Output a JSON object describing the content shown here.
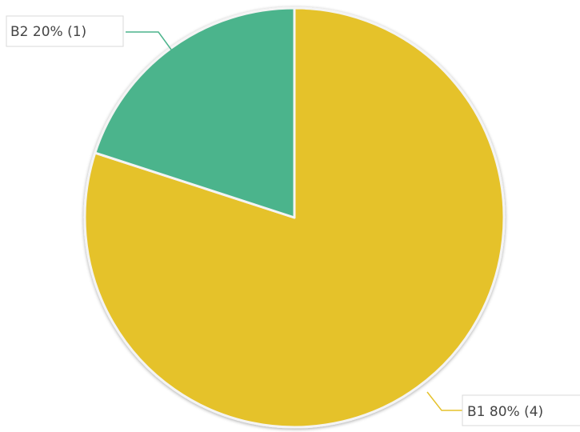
{
  "chart_data": {
    "type": "pie",
    "title": "",
    "slices": [
      {
        "name": "B1",
        "percent": "80%",
        "count": "(4)",
        "value": 4,
        "color": "#E5C22B"
      },
      {
        "name": "B2",
        "percent": "20%",
        "count": "(1)",
        "value": 1,
        "color": "#4CB48C"
      }
    ],
    "start": "top",
    "direction": "clockwise",
    "legend": "none",
    "data_labels": "outside-with-leader-lines"
  }
}
